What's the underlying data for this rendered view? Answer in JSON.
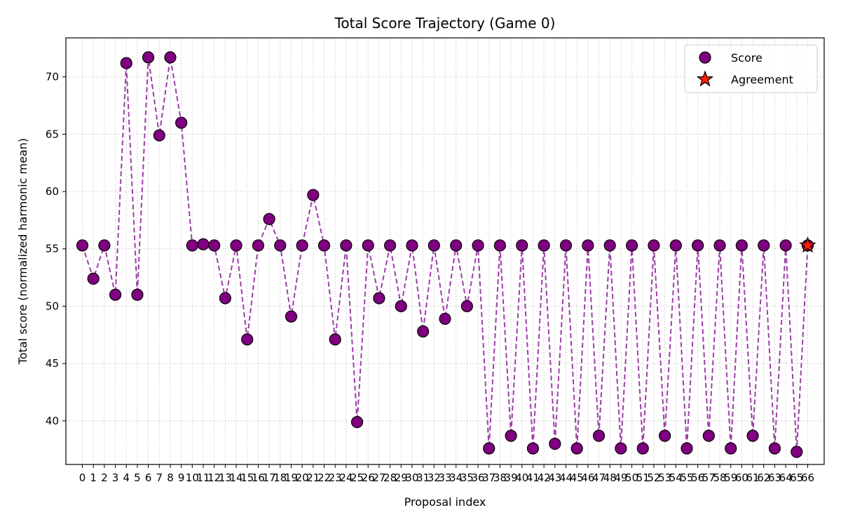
{
  "chart_data": {
    "type": "line",
    "title": "Total Score Trajectory (Game 0)",
    "xlabel": "Proposal index",
    "ylabel": "Total score (normalized harmonic mean)",
    "xlim": [
      -1.5,
      67.5
    ],
    "ylim": [
      36.2,
      73.4
    ],
    "yticks": [
      40,
      45,
      50,
      55,
      60,
      65,
      70
    ],
    "grid": true,
    "grid_style": "dotted",
    "legend_position": "top-right",
    "line_style": "dashed",
    "colors": {
      "line": "#9c3ea6",
      "marker_fill": "#800080",
      "marker_edge": "#000000",
      "agreement_fill": "#ff1a00"
    },
    "series": [
      {
        "name": "Score",
        "marker": "circle",
        "x": [
          0,
          1,
          2,
          3,
          4,
          5,
          6,
          7,
          8,
          9,
          10,
          11,
          12,
          13,
          14,
          15,
          16,
          17,
          18,
          19,
          20,
          21,
          22,
          23,
          24,
          25,
          26,
          27,
          28,
          29,
          30,
          31,
          32,
          33,
          34,
          35,
          36,
          37,
          38,
          39,
          40,
          41,
          42,
          43,
          44,
          45,
          46,
          47,
          48,
          49,
          50,
          51,
          52,
          53,
          54,
          55,
          56,
          57,
          58,
          59,
          60,
          61,
          62,
          63,
          64,
          65,
          66
        ],
        "y": [
          55.3,
          52.4,
          55.3,
          51.0,
          71.2,
          51.0,
          71.7,
          64.9,
          71.7,
          66.0,
          55.3,
          55.4,
          55.3,
          50.7,
          55.3,
          47.1,
          55.3,
          57.6,
          55.3,
          49.1,
          55.3,
          59.7,
          55.3,
          47.1,
          55.3,
          39.9,
          55.3,
          50.7,
          55.3,
          50.0,
          55.3,
          47.8,
          55.3,
          48.9,
          55.3,
          50.0,
          55.3,
          37.6,
          55.3,
          38.7,
          55.3,
          37.6,
          55.3,
          38.0,
          55.3,
          37.6,
          55.3,
          38.7,
          55.3,
          37.6,
          55.3,
          37.6,
          55.3,
          38.7,
          55.3,
          37.6,
          55.3,
          38.7,
          55.3,
          37.6,
          55.3,
          38.7,
          55.3,
          37.6,
          55.3,
          37.3,
          55.3
        ]
      },
      {
        "name": "Agreement",
        "marker": "star",
        "x": [
          66
        ],
        "y": [
          55.3
        ]
      }
    ]
  }
}
